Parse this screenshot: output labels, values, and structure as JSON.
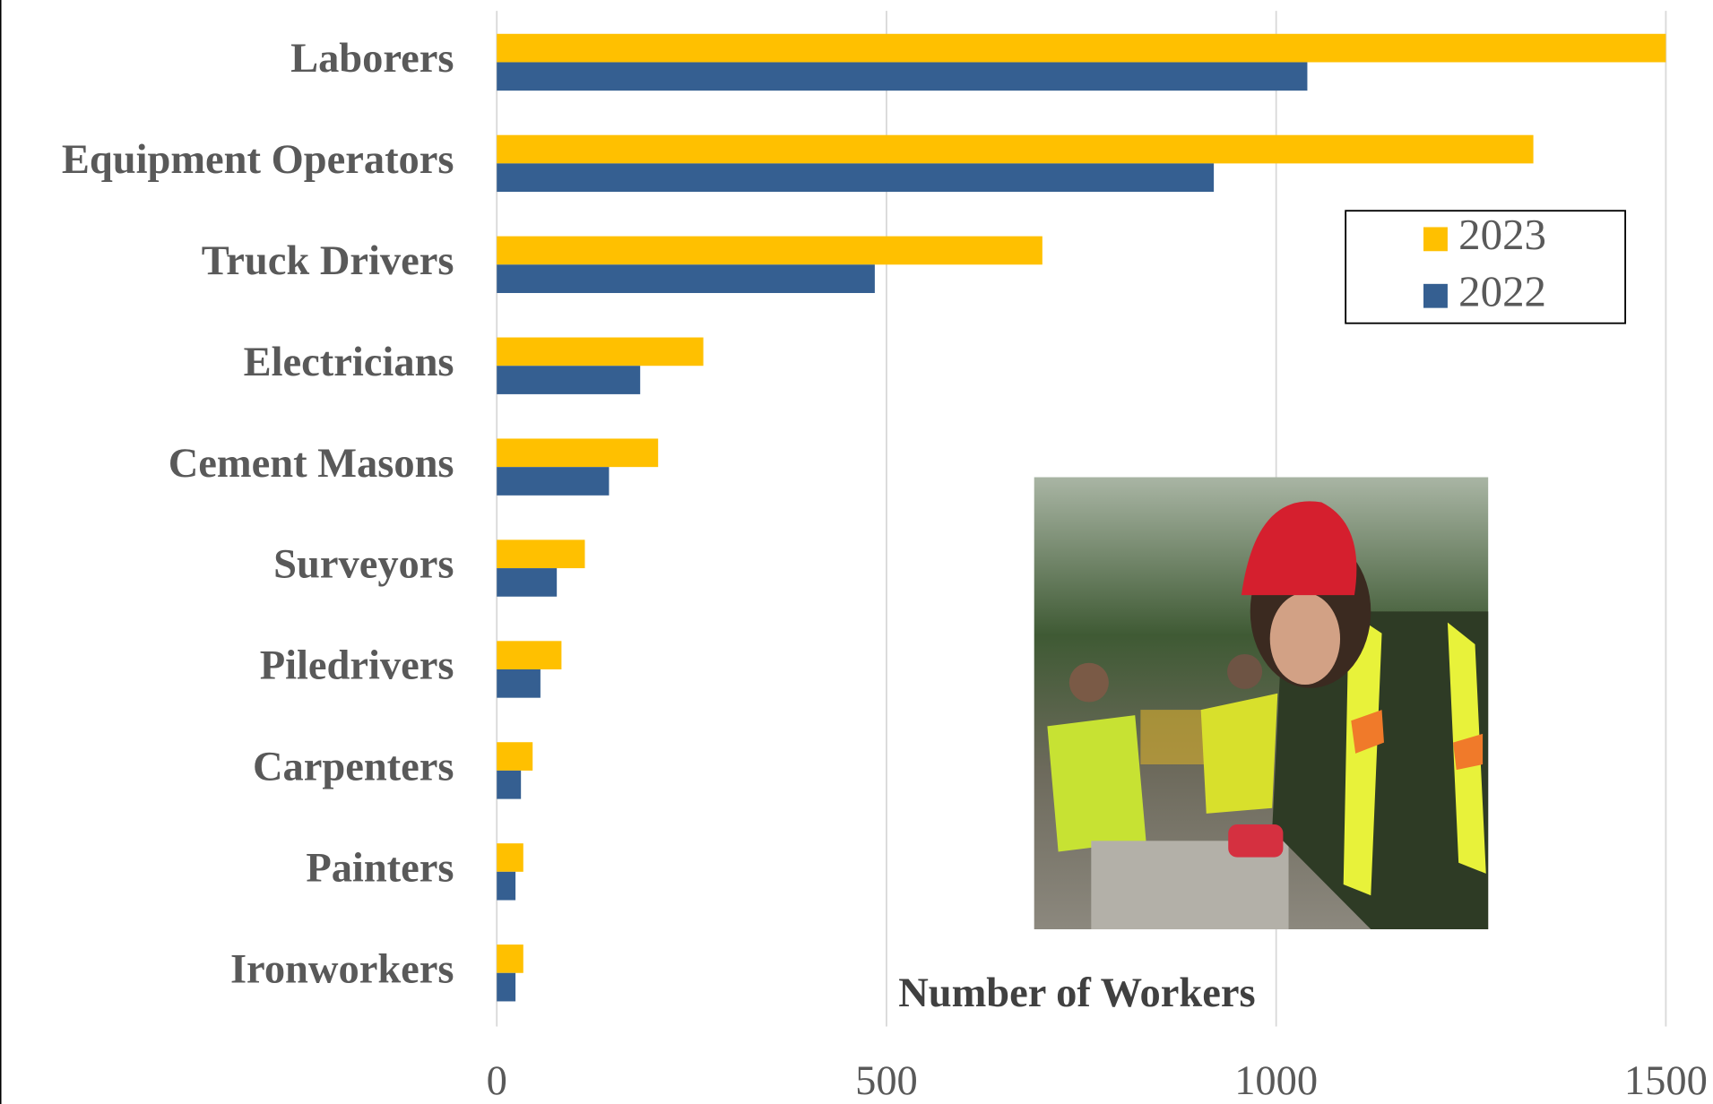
{
  "chart_data": {
    "type": "bar",
    "orientation": "horizontal",
    "x_label": "Number of Workers",
    "categories": [
      "Laborers",
      "Equipment Operators",
      "Truck Drivers",
      "Electricians",
      "Cement Masons",
      "Surveyors",
      "Piledrivers",
      "Carpenters",
      "Painters",
      "Ironworkers"
    ],
    "series": [
      {
        "name": "2023",
        "color": "#ffc000",
        "values": [
          1500,
          1330,
          700,
          265,
          207,
          113,
          83,
          46,
          34,
          34
        ]
      },
      {
        "name": "2022",
        "color": "#355f91",
        "values": [
          1040,
          920,
          485,
          184,
          144,
          77,
          56,
          31,
          24,
          24
        ]
      }
    ],
    "xlim": [
      0,
      1500
    ],
    "xticks": [
      0,
      500,
      1000,
      1500
    ],
    "grid": true,
    "legend": "upper right"
  }
}
